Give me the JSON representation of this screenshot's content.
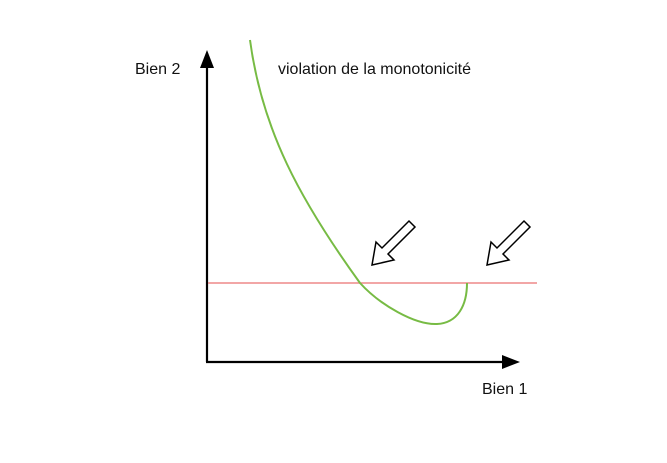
{
  "diagram": {
    "title": "violation de la monotonicité",
    "y_axis_label": "Bien 2",
    "x_axis_label": "Bien 1"
  },
  "colors": {
    "axes": "#000000",
    "indifference_curve": "#77bb44",
    "horizontal_line": "#ee8888",
    "arrow_fill": "#ffffff",
    "arrow_stroke": "#000000",
    "text": "#111111"
  },
  "icons": {
    "arrow_left": "hollow-arrow-down-left-icon",
    "arrow_right": "hollow-arrow-down-left-icon"
  }
}
